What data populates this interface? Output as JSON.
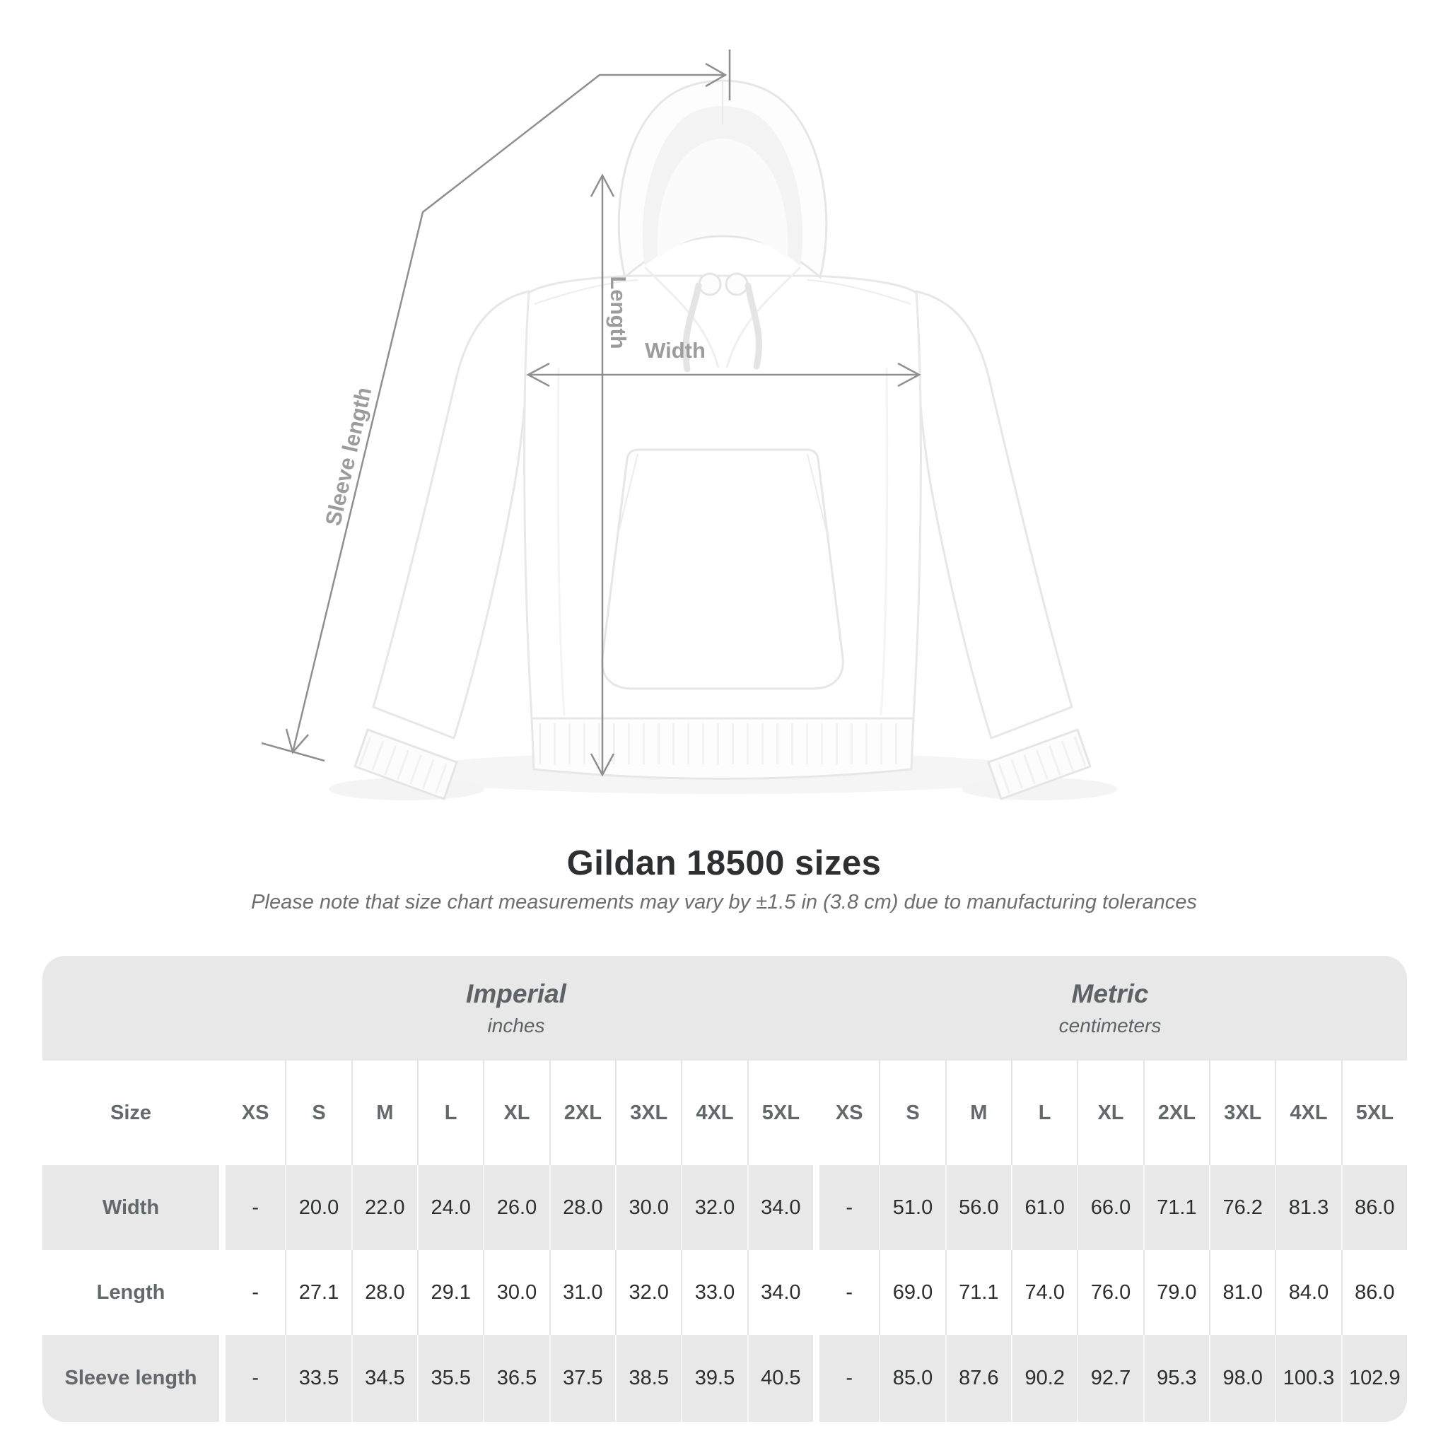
{
  "title": "Gildan 18500 sizes",
  "note": "Please note that size chart measurements may vary by ±1.5 in (3.8 cm) due to manufacturing tolerances",
  "diagram": {
    "labels": {
      "sleeve": "Sleeve length",
      "length": "Length",
      "width": "Width"
    }
  },
  "table": {
    "size_header": "Size",
    "groups": [
      {
        "label": "Imperial",
        "sublabel": "inches"
      },
      {
        "label": "Metric",
        "sublabel": "centimeters"
      }
    ],
    "sizes": [
      "XS",
      "S",
      "M",
      "L",
      "XL",
      "2XL",
      "3XL",
      "4XL",
      "5XL"
    ],
    "rows": [
      {
        "label": "Width",
        "imperial": [
          "-",
          "20.0",
          "22.0",
          "24.0",
          "26.0",
          "28.0",
          "30.0",
          "32.0",
          "34.0"
        ],
        "metric": [
          "-",
          "51.0",
          "56.0",
          "61.0",
          "66.0",
          "71.1",
          "76.2",
          "81.3",
          "86.0"
        ]
      },
      {
        "label": "Length",
        "imperial": [
          "-",
          "27.1",
          "28.0",
          "29.1",
          "30.0",
          "31.0",
          "32.0",
          "33.0",
          "34.0"
        ],
        "metric": [
          "-",
          "69.0",
          "71.1",
          "74.0",
          "76.0",
          "79.0",
          "81.0",
          "84.0",
          "86.0"
        ]
      },
      {
        "label": "Sleeve length",
        "imperial": [
          "-",
          "33.5",
          "34.5",
          "35.5",
          "36.5",
          "37.5",
          "38.5",
          "39.5",
          "40.5"
        ],
        "metric": [
          "-",
          "85.0",
          "87.6",
          "90.2",
          "92.7",
          "95.3",
          "98.0",
          "100.3",
          "102.9"
        ]
      }
    ]
  },
  "colors": {
    "table_band": "#e8e8e8",
    "dimension_line": "#8f8f8f",
    "dimension_label": "#9c9c9c",
    "title_text": "#2e2f30",
    "note_text": "#6e6e6e",
    "value_text": "#2c2e2f",
    "header_text": "#5d6365"
  }
}
